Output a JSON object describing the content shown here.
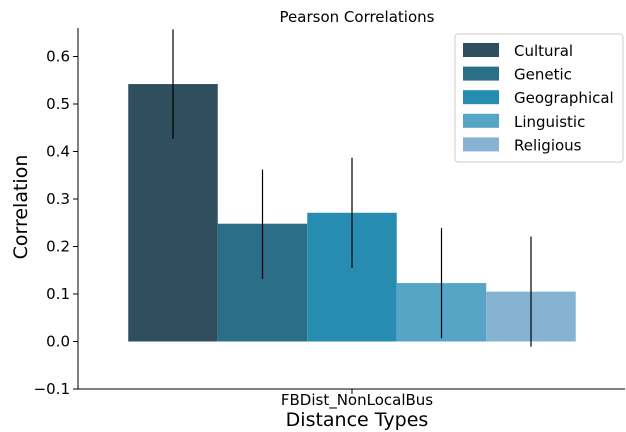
{
  "chart_data": {
    "type": "bar",
    "title": "Pearson Correlations",
    "xlabel": "Distance Types",
    "ylabel": "Correlation",
    "categories": [
      "FBDist_NonLocalBus"
    ],
    "ylim": [
      -0.1,
      0.66
    ],
    "yticks": [
      -0.1,
      0.0,
      0.1,
      0.2,
      0.3,
      0.4,
      0.5,
      0.6
    ],
    "ytick_labels": [
      "−0.1",
      "0.0",
      "0.1",
      "0.2",
      "0.3",
      "0.4",
      "0.5",
      "0.6"
    ],
    "legend_position": "top-right",
    "grid": false,
    "series": [
      {
        "name": "Cultural",
        "value": 0.542,
        "err_low": 0.427,
        "err_high": 0.657,
        "color": "#2f4f5e"
      },
      {
        "name": "Genetic",
        "value": 0.248,
        "err_low": 0.132,
        "err_high": 0.362,
        "color": "#2a6f87"
      },
      {
        "name": "Geographical",
        "value": 0.271,
        "err_low": 0.155,
        "err_high": 0.387,
        "color": "#268cb0"
      },
      {
        "name": "Linguistic",
        "value": 0.123,
        "err_low": 0.007,
        "err_high": 0.239,
        "color": "#56a4c6"
      },
      {
        "name": "Religious",
        "value": 0.105,
        "err_low": -0.011,
        "err_high": 0.221,
        "color": "#87b3d3"
      }
    ]
  }
}
